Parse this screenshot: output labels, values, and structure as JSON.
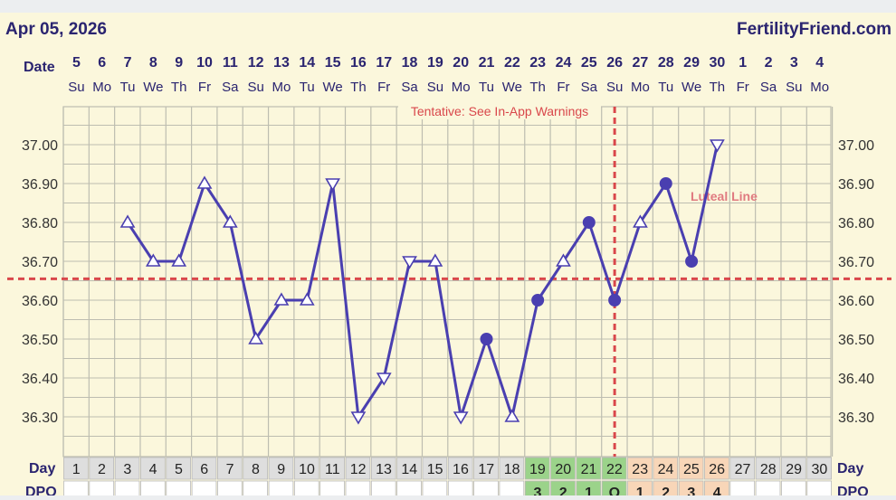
{
  "header": {
    "date_label": "Apr 05, 2026",
    "brand": "FertilityFriend.com"
  },
  "chart_data": {
    "type": "line",
    "row_labels": {
      "date": "Date",
      "day": "Day",
      "dpo": "DPO"
    },
    "columns": [
      {
        "date": "5",
        "weekday": "Su",
        "cycle_day": "1"
      },
      {
        "date": "6",
        "weekday": "Mo",
        "cycle_day": "2"
      },
      {
        "date": "7",
        "weekday": "Tu",
        "cycle_day": "3"
      },
      {
        "date": "8",
        "weekday": "We",
        "cycle_day": "4"
      },
      {
        "date": "9",
        "weekday": "Th",
        "cycle_day": "5"
      },
      {
        "date": "10",
        "weekday": "Fr",
        "cycle_day": "6"
      },
      {
        "date": "11",
        "weekday": "Sa",
        "cycle_day": "7"
      },
      {
        "date": "12",
        "weekday": "Su",
        "cycle_day": "8"
      },
      {
        "date": "13",
        "weekday": "Mo",
        "cycle_day": "9"
      },
      {
        "date": "14",
        "weekday": "Tu",
        "cycle_day": "10"
      },
      {
        "date": "15",
        "weekday": "We",
        "cycle_day": "11"
      },
      {
        "date": "16",
        "weekday": "Th",
        "cycle_day": "12"
      },
      {
        "date": "17",
        "weekday": "Fr",
        "cycle_day": "13"
      },
      {
        "date": "18",
        "weekday": "Sa",
        "cycle_day": "14"
      },
      {
        "date": "19",
        "weekday": "Su",
        "cycle_day": "15"
      },
      {
        "date": "20",
        "weekday": "Mo",
        "cycle_day": "16"
      },
      {
        "date": "21",
        "weekday": "Tu",
        "cycle_day": "17"
      },
      {
        "date": "22",
        "weekday": "We",
        "cycle_day": "18"
      },
      {
        "date": "23",
        "weekday": "Th",
        "cycle_day": "19"
      },
      {
        "date": "24",
        "weekday": "Fr",
        "cycle_day": "20"
      },
      {
        "date": "25",
        "weekday": "Sa",
        "cycle_day": "21"
      },
      {
        "date": "26",
        "weekday": "Su",
        "cycle_day": "22"
      },
      {
        "date": "27",
        "weekday": "Mo",
        "cycle_day": "23"
      },
      {
        "date": "28",
        "weekday": "Tu",
        "cycle_day": "24"
      },
      {
        "date": "29",
        "weekday": "We",
        "cycle_day": "25"
      },
      {
        "date": "30",
        "weekday": "Th",
        "cycle_day": "26"
      },
      {
        "date": "1",
        "weekday": "Fr",
        "cycle_day": "27"
      },
      {
        "date": "2",
        "weekday": "Sa",
        "cycle_day": "28"
      },
      {
        "date": "3",
        "weekday": "Su",
        "cycle_day": "29"
      },
      {
        "date": "4",
        "weekday": "Mo",
        "cycle_day": "30"
      }
    ],
    "y_ticks": [
      "37.00",
      "36.90",
      "36.80",
      "36.70",
      "36.60",
      "36.50",
      "36.40",
      "36.30"
    ],
    "ylim": [
      36.2,
      37.1
    ],
    "temperatures": [
      {
        "day": 3,
        "value": 36.8,
        "marker": "triangle-up"
      },
      {
        "day": 4,
        "value": 36.7,
        "marker": "triangle-up"
      },
      {
        "day": 5,
        "value": 36.7,
        "marker": "triangle-up"
      },
      {
        "day": 6,
        "value": 36.9,
        "marker": "triangle-up"
      },
      {
        "day": 7,
        "value": 36.8,
        "marker": "triangle-up"
      },
      {
        "day": 8,
        "value": 36.5,
        "marker": "triangle-up"
      },
      {
        "day": 9,
        "value": 36.6,
        "marker": "triangle-up"
      },
      {
        "day": 10,
        "value": 36.6,
        "marker": "triangle-up"
      },
      {
        "day": 11,
        "value": 36.9,
        "marker": "triangle-down"
      },
      {
        "day": 12,
        "value": 36.3,
        "marker": "triangle-down"
      },
      {
        "day": 13,
        "value": 36.4,
        "marker": "triangle-down"
      },
      {
        "day": 14,
        "value": 36.7,
        "marker": "triangle-down"
      },
      {
        "day": 15,
        "value": 36.7,
        "marker": "triangle-up"
      },
      {
        "day": 16,
        "value": 36.3,
        "marker": "triangle-down"
      },
      {
        "day": 17,
        "value": 36.5,
        "marker": "dot"
      },
      {
        "day": 18,
        "value": 36.3,
        "marker": "triangle-up"
      },
      {
        "day": 19,
        "value": 36.6,
        "marker": "dot"
      },
      {
        "day": 20,
        "value": 36.7,
        "marker": "triangle-up"
      },
      {
        "day": 21,
        "value": 36.8,
        "marker": "dot"
      },
      {
        "day": 22,
        "value": 36.6,
        "marker": "dot"
      },
      {
        "day": 23,
        "value": 36.8,
        "marker": "triangle-up"
      },
      {
        "day": 24,
        "value": 36.9,
        "marker": "dot"
      },
      {
        "day": 25,
        "value": 36.7,
        "marker": "dot"
      },
      {
        "day": 26,
        "value": 37.0,
        "marker": "triangle-down"
      }
    ],
    "coverline": {
      "value": 36.655,
      "label": "Luteal Line"
    },
    "ovulation_day": 22,
    "annotation": "Tentative: See In-App Warnings",
    "dpo": [
      {
        "day": 19,
        "label": "3",
        "phase": "pre"
      },
      {
        "day": 20,
        "label": "2",
        "phase": "pre"
      },
      {
        "day": 21,
        "label": "1",
        "phase": "pre"
      },
      {
        "day": 22,
        "label": "O",
        "phase": "pre"
      },
      {
        "day": 23,
        "label": "1",
        "phase": "post"
      },
      {
        "day": 24,
        "label": "2",
        "phase": "post"
      },
      {
        "day": 25,
        "label": "3",
        "phase": "post"
      },
      {
        "day": 26,
        "label": "4",
        "phase": "post"
      }
    ],
    "colors": {
      "background": "#fbf7dc",
      "grid": "#bdbdb0",
      "line": "#4a3fb0",
      "text": "#2a2470",
      "coverline": "#d9474b",
      "pre_ovulation": "#9bd38a",
      "post_ovulation": "#f8d6b8",
      "day_cell": "#dedede"
    }
  }
}
